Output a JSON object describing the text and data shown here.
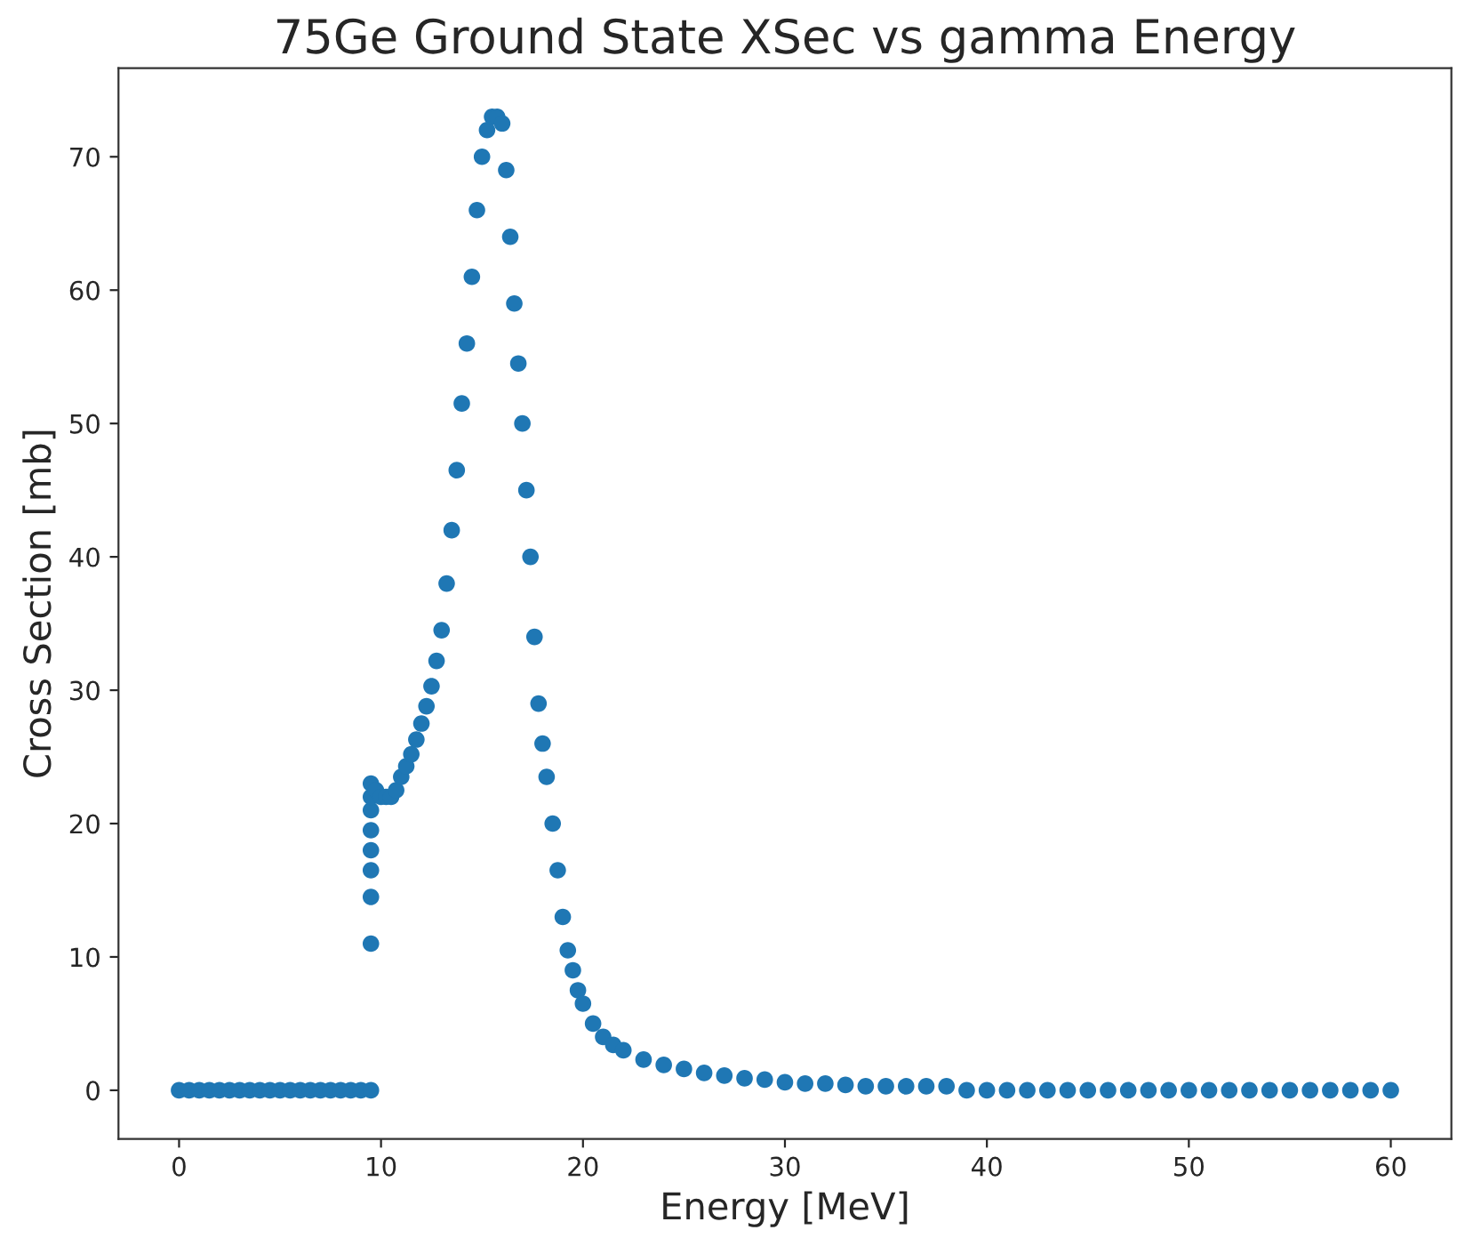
{
  "chart_data": {
    "type": "scatter",
    "title": "75Ge Ground State XSec vs gamma Energy",
    "xlabel": "Energy [MeV]",
    "ylabel": "Cross Section [mb]",
    "xlim": [
      -3,
      63
    ],
    "xticks": [
      0,
      10,
      20,
      30,
      40,
      50,
      60
    ],
    "ylim": [
      -3.65,
      76.65
    ],
    "yticks": [
      0,
      10,
      20,
      30,
      40,
      50,
      60,
      70
    ],
    "grid": false,
    "marker": "circle",
    "series": [
      {
        "color": "#1f77b4",
        "x": [
          0,
          0.5,
          1,
          1.5,
          2,
          2.5,
          3,
          3.5,
          4,
          4.5,
          5,
          5.5,
          6,
          6.5,
          7,
          7.5,
          8,
          8.5,
          9,
          9.5,
          9.5,
          9.5,
          9.5,
          9.5,
          9.5,
          9.5,
          9.5,
          9.5,
          9.75,
          10,
          10.25,
          10.5,
          10.75,
          11,
          11.25,
          11.5,
          11.75,
          12,
          12.25,
          12.5,
          12.75,
          13,
          13.25,
          13.5,
          13.75,
          14,
          14.25,
          14.5,
          14.75,
          15,
          15.25,
          15.5,
          15.75,
          16,
          16.2,
          16.4,
          16.6,
          16.8,
          17,
          17.2,
          17.4,
          17.6,
          17.8,
          18,
          18.2,
          18.5,
          18.75,
          19,
          19.25,
          19.5,
          19.75,
          20,
          20.5,
          21,
          21.5,
          22,
          23,
          24,
          25,
          26,
          27,
          28,
          29,
          30,
          31,
          32,
          33,
          34,
          35,
          36,
          37,
          38,
          39,
          40,
          41,
          42,
          43,
          44,
          45,
          46,
          47,
          48,
          49,
          50,
          51,
          52,
          53,
          54,
          55,
          56,
          57,
          58,
          59,
          60
        ],
        "values": [
          0,
          0,
          0,
          0,
          0,
          0,
          0,
          0,
          0,
          0,
          0,
          0,
          0,
          0,
          0,
          0,
          0,
          0,
          0,
          0,
          11,
          14.5,
          16.5,
          18,
          19.5,
          21,
          22,
          23,
          22.5,
          22,
          22,
          22,
          22.5,
          23.5,
          24.3,
          25.2,
          26.3,
          27.5,
          28.8,
          30.3,
          32.2,
          34.5,
          38,
          42,
          46.5,
          51.5,
          56,
          61,
          66,
          70,
          72,
          73,
          73,
          72.5,
          69,
          64,
          59,
          54.5,
          50,
          45,
          40,
          34,
          29,
          26,
          23.5,
          20,
          16.5,
          13,
          10.5,
          9,
          7.5,
          6.5,
          5,
          4,
          3.4,
          3,
          2.3,
          1.9,
          1.6,
          1.3,
          1.1,
          0.9,
          0.8,
          0.6,
          0.5,
          0.5,
          0.4,
          0.3,
          0.3,
          0.3,
          0.3,
          0.3,
          0,
          0,
          0,
          0,
          0,
          0,
          0,
          0,
          0,
          0,
          0,
          0,
          0,
          0,
          0,
          0,
          0,
          0,
          0,
          0,
          0,
          0
        ]
      }
    ]
  }
}
